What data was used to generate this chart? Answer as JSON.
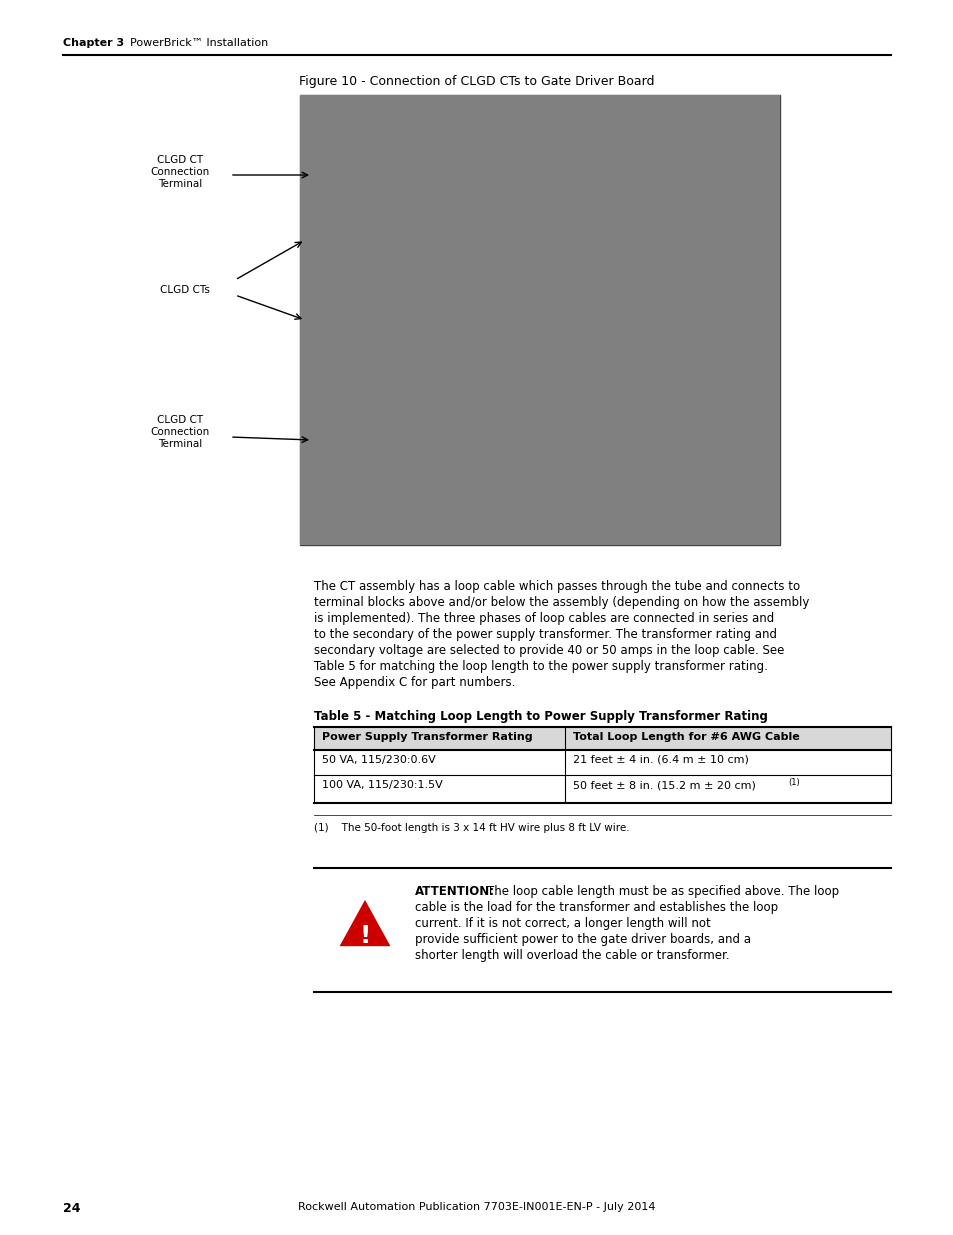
{
  "page_number": "24",
  "footer_text": "Rockwell Automation Publication 7703E-IN001E-EN-P - July 2014",
  "header_chapter": "Chapter 3",
  "header_title": "PowerBrick™ Installation",
  "figure_title": "Figure 10 - Connection of CLGD CTs to Gate Driver Board",
  "label1_title": "CLGD CT",
  "label1_line2": "Connection",
  "label1_line3": "Terminal",
  "label2_title": "CLGD CTs",
  "label3_title": "CLGD CT",
  "label3_line2": "Connection",
  "label3_line3": "Terminal",
  "paragraph": "The CT assembly has a loop cable which passes through the tube and connects to terminal blocks above and/or below the assembly (depending on how the assembly is implemented). The three phases of loop cables are connected in series and to the secondary of the power supply transformer. The transformer rating and secondary voltage are selected to provide 40 or 50 amps in the loop cable. See Table 5 for matching the loop length to the power supply transformer rating. See Appendix C for part numbers.",
  "table_title": "Table 5 - Matching Loop Length to Power Supply Transformer Rating",
  "table_header_col1": "Power Supply Transformer Rating",
  "table_header_col2": "Total Loop Length for #6 AWG Cable",
  "table_row1_col1": "50 VA, 115/230:0.6V",
  "table_row1_col2": "21 feet ± 4 in. (6.4 m ± 10 cm)",
  "table_row2_col1": "100 VA, 115/230:1.5V",
  "table_row2_col2": "50 feet ± 8 in. (15.2 m ± 20 cm) ⁻¹",
  "table_row2_col2_sup": "(1)",
  "footnote": "(1)    The 50-foot length is 3 x 14 ft HV wire plus 8 ft LV wire.",
  "attention_bold": "ATTENTION:",
  "attention_text": " The loop cable length must be as specified above. The loop cable is the load for the transformer and establishes the loop current. If it is not correct, a longer length will not provide sufficient power to the gate driver boards, and a shorter length will overload the cable or transformer.",
  "bg_color": "#ffffff",
  "text_color": "#000000",
  "link_color": "#0000cc",
  "table_header_bg": "#e0e0e0",
  "separator_color": "#000000"
}
